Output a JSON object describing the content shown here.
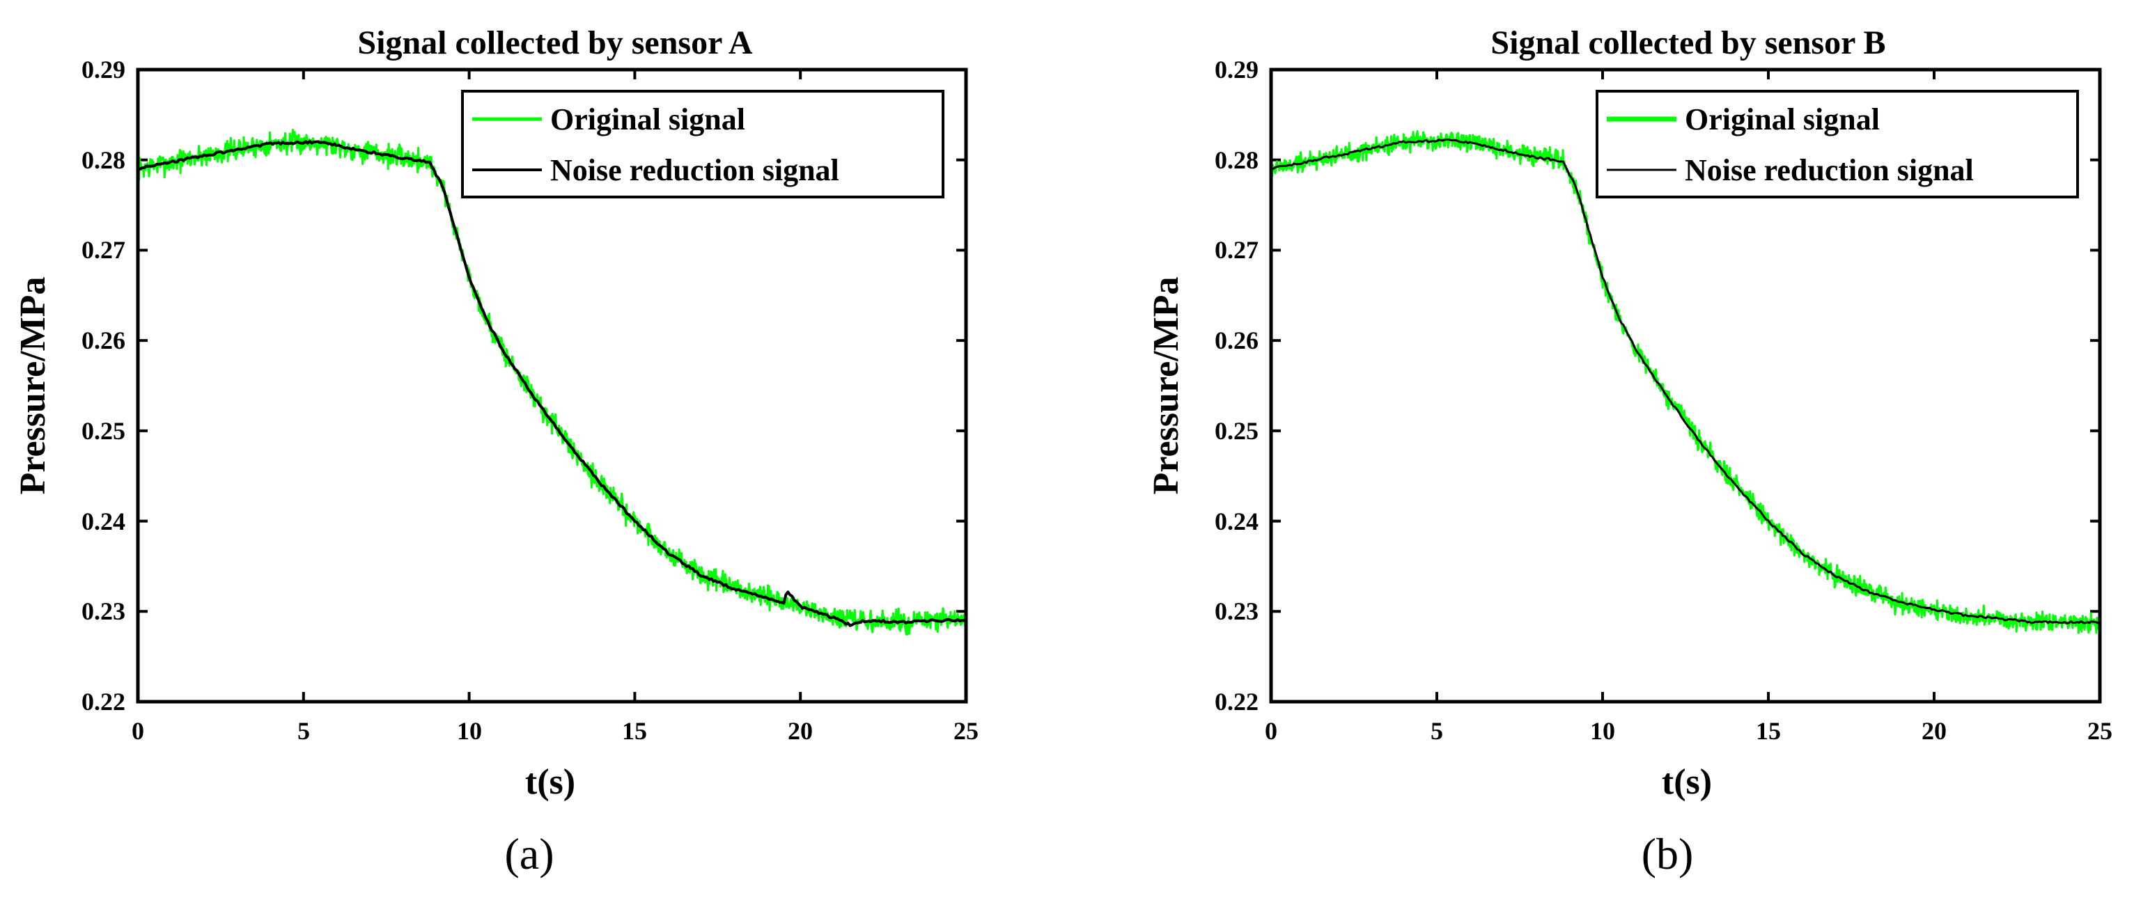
{
  "chart_data": [
    {
      "type": "line",
      "title": "Signal collected by sensor A",
      "panel_label": "(a)",
      "xlabel": "t(s)",
      "ylabel": "Pressure/MPa",
      "xlim": [
        0,
        25
      ],
      "ylim": [
        0.22,
        0.29
      ],
      "xticks": [
        "0",
        "5",
        "10",
        "15",
        "20",
        "25"
      ],
      "yticks": [
        "0.22",
        "0.23",
        "0.24",
        "0.25",
        "0.26",
        "0.27",
        "0.28",
        "0.29"
      ],
      "legend": [
        "Original signal",
        "Noise reduction signal"
      ],
      "legend_position": "top-right",
      "series": [
        {
          "name": "Original signal",
          "color": "#00ff00",
          "noise_amplitude": 0.0018,
          "x": [
            0,
            2,
            4,
            5.5,
            6.5,
            8,
            8.8,
            9.2,
            9.6,
            10,
            10.5,
            11,
            12,
            13,
            14,
            15,
            16,
            17,
            18,
            19,
            19.6,
            20,
            21,
            22,
            23,
            24,
            25
          ],
          "y": [
            0.279,
            0.2805,
            0.2818,
            0.282,
            0.2812,
            0.2802,
            0.2798,
            0.277,
            0.272,
            0.267,
            0.2625,
            0.259,
            0.2535,
            0.2485,
            0.244,
            0.24,
            0.2365,
            0.234,
            0.2325,
            0.2315,
            0.231,
            0.2305,
            0.2293,
            0.2288,
            0.2288,
            0.229,
            0.229
          ]
        },
        {
          "name": "Noise reduction signal",
          "color": "#000000",
          "x": [
            0,
            2,
            4,
            5.5,
            6.5,
            8,
            8.8,
            9.2,
            9.6,
            10,
            10.5,
            11,
            12,
            13,
            14,
            15,
            16,
            17,
            18,
            19,
            19.5,
            19.6,
            20,
            21,
            21.5,
            22,
            23,
            24,
            25
          ],
          "y": [
            0.279,
            0.2805,
            0.2818,
            0.282,
            0.2812,
            0.2802,
            0.2798,
            0.277,
            0.272,
            0.267,
            0.2625,
            0.259,
            0.2535,
            0.2485,
            0.244,
            0.24,
            0.2365,
            0.234,
            0.2325,
            0.2315,
            0.231,
            0.2322,
            0.2305,
            0.2293,
            0.2285,
            0.229,
            0.2288,
            0.229,
            0.229
          ]
        }
      ]
    },
    {
      "type": "line",
      "title": "Signal collected by sensor B",
      "panel_label": "(b)",
      "xlabel": "t(s)",
      "ylabel": "Pressure/MPa",
      "xlim": [
        0,
        25
      ],
      "ylim": [
        0.22,
        0.29
      ],
      "xticks": [
        "0",
        "5",
        "10",
        "15",
        "20",
        "25"
      ],
      "yticks": [
        "0.22",
        "0.23",
        "0.24",
        "0.25",
        "0.26",
        "0.27",
        "0.28",
        "0.29"
      ],
      "legend": [
        "Original signal",
        "Noise reduction signal"
      ],
      "legend_position": "top-right",
      "series": [
        {
          "name": "Original signal",
          "color": "#00ff00",
          "noise_amplitude": 0.0016,
          "x": [
            0,
            2,
            4,
            5.5,
            6.5,
            8,
            8.8,
            9.2,
            9.6,
            10,
            10.5,
            11,
            12,
            13,
            14,
            15,
            16,
            17,
            18,
            19,
            20,
            21,
            22,
            23,
            24,
            25
          ],
          "y": [
            0.279,
            0.2805,
            0.282,
            0.2822,
            0.2815,
            0.2803,
            0.2798,
            0.277,
            0.272,
            0.267,
            0.2625,
            0.259,
            0.2535,
            0.2485,
            0.244,
            0.24,
            0.2365,
            0.234,
            0.2322,
            0.231,
            0.2302,
            0.2295,
            0.2292,
            0.2288,
            0.2288,
            0.2288
          ]
        },
        {
          "name": "Noise reduction signal",
          "color": "#000000",
          "x": [
            0,
            2,
            4,
            5.5,
            6.5,
            8,
            8.8,
            9.2,
            9.6,
            10,
            10.5,
            11,
            12,
            13,
            14,
            15,
            16,
            17,
            18,
            19,
            20,
            21,
            22,
            23,
            24,
            25
          ],
          "y": [
            0.279,
            0.2805,
            0.282,
            0.2822,
            0.2815,
            0.2803,
            0.2798,
            0.277,
            0.272,
            0.267,
            0.2625,
            0.259,
            0.2535,
            0.2485,
            0.244,
            0.24,
            0.2365,
            0.234,
            0.2322,
            0.231,
            0.2302,
            0.2295,
            0.2292,
            0.2288,
            0.2288,
            0.2288
          ]
        }
      ]
    }
  ]
}
